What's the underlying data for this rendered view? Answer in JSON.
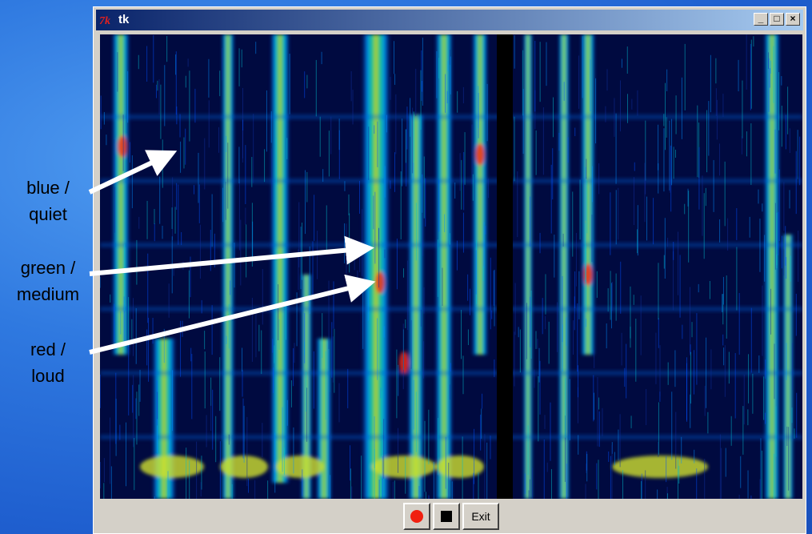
{
  "window": {
    "title": "tk"
  },
  "annotations": [
    {
      "lines": [
        "blue /",
        "quiet"
      ]
    },
    {
      "lines": [
        "green /",
        "medium"
      ]
    },
    {
      "lines": [
        "red /",
        "loud"
      ]
    }
  ],
  "buttons": {
    "exit": "Exit"
  }
}
